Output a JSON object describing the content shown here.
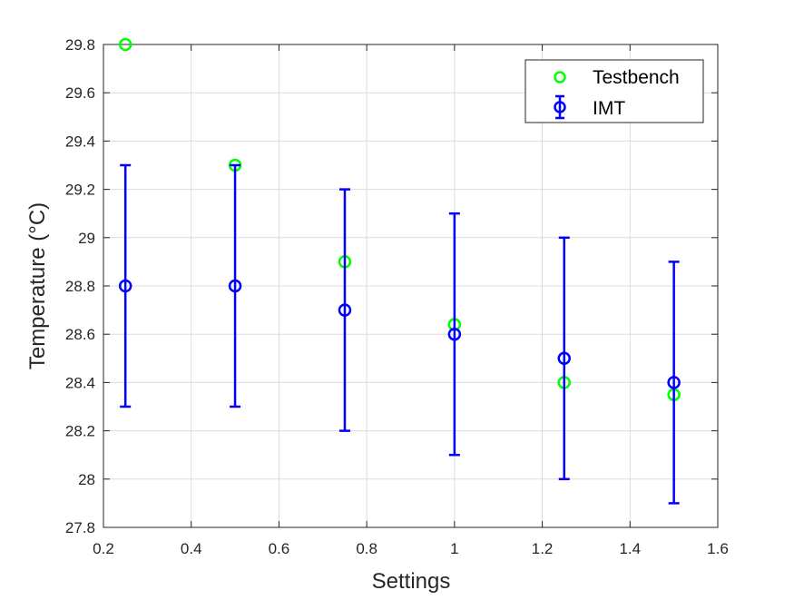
{
  "chart_data": {
    "type": "scatter",
    "xlabel": "Settings",
    "ylabel": "Temperature (°C)",
    "xlim": [
      0.2,
      1.6
    ],
    "ylim": [
      27.8,
      29.8
    ],
    "xticks": [
      0.2,
      0.4,
      0.6,
      0.8,
      1,
      1.2,
      1.4,
      1.6
    ],
    "yticks": [
      27.8,
      28,
      28.2,
      28.4,
      28.6,
      28.8,
      29,
      29.2,
      29.4,
      29.6,
      29.8
    ],
    "xtick_labels": [
      "0.2",
      "0.4",
      "0.6",
      "0.8",
      "1",
      "1.2",
      "1.4",
      "1.6"
    ],
    "ytick_labels": [
      "27.8",
      "28",
      "28.2",
      "28.4",
      "28.6",
      "28.8",
      "29",
      "29.2",
      "29.4",
      "29.6",
      "29.8"
    ],
    "grid": true,
    "legend_position": "top-right",
    "series": [
      {
        "name": "Testbench",
        "marker": "circle",
        "color": "#00ff00",
        "x": [
          0.25,
          0.5,
          0.75,
          1.0,
          1.25,
          1.5
        ],
        "y": [
          29.8,
          29.3,
          28.9,
          28.64,
          28.4,
          28.35
        ]
      },
      {
        "name": "IMT",
        "marker": "circle",
        "errorbar": true,
        "color": "#0000ff",
        "x": [
          0.25,
          0.5,
          0.75,
          1.0,
          1.25,
          1.5
        ],
        "y": [
          28.8,
          28.8,
          28.7,
          28.6,
          28.5,
          28.4
        ],
        "error": [
          0.5,
          0.5,
          0.5,
          0.5,
          0.5,
          0.5
        ]
      }
    ]
  }
}
